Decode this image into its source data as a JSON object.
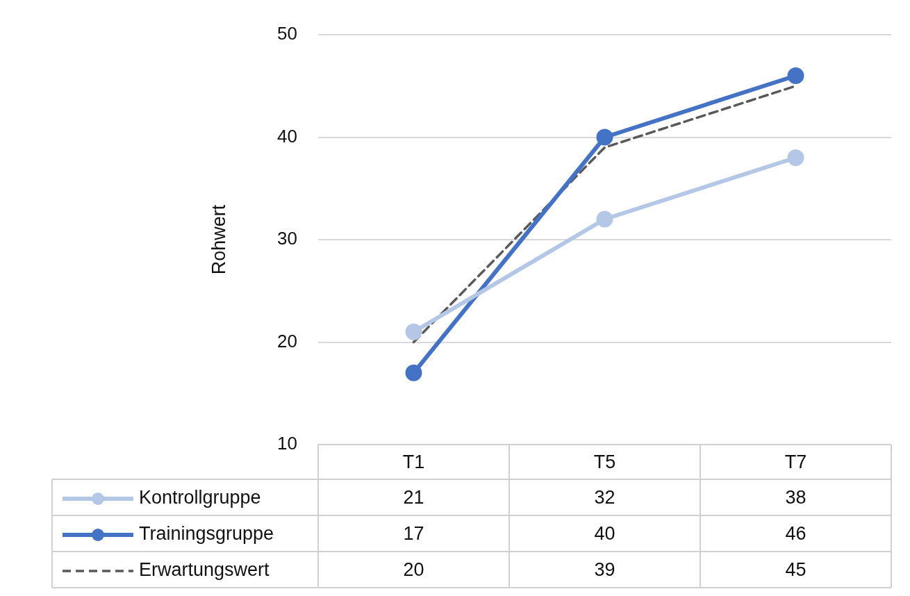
{
  "chart_data": {
    "type": "line",
    "ylabel": "Rohwert",
    "categories": [
      "T1",
      "T5",
      "T7"
    ],
    "ylim": [
      10,
      50
    ],
    "yticks": [
      10,
      20,
      30,
      40,
      50
    ],
    "grid": "y",
    "legend": "bottom",
    "data_labels": true,
    "marker": "circle",
    "series": [
      {
        "name": "Kontrollgruppe",
        "color": "#b4c7e7",
        "values": [
          21,
          32,
          38
        ]
      },
      {
        "name": "Trainingsgruppe",
        "color": "#4472c4",
        "values": [
          17,
          40,
          46
        ]
      },
      {
        "name": "Erwartungswert",
        "color": "#595959",
        "values": [
          20,
          39,
          45
        ],
        "line_style": "dashed",
        "marker": "none"
      }
    ]
  }
}
